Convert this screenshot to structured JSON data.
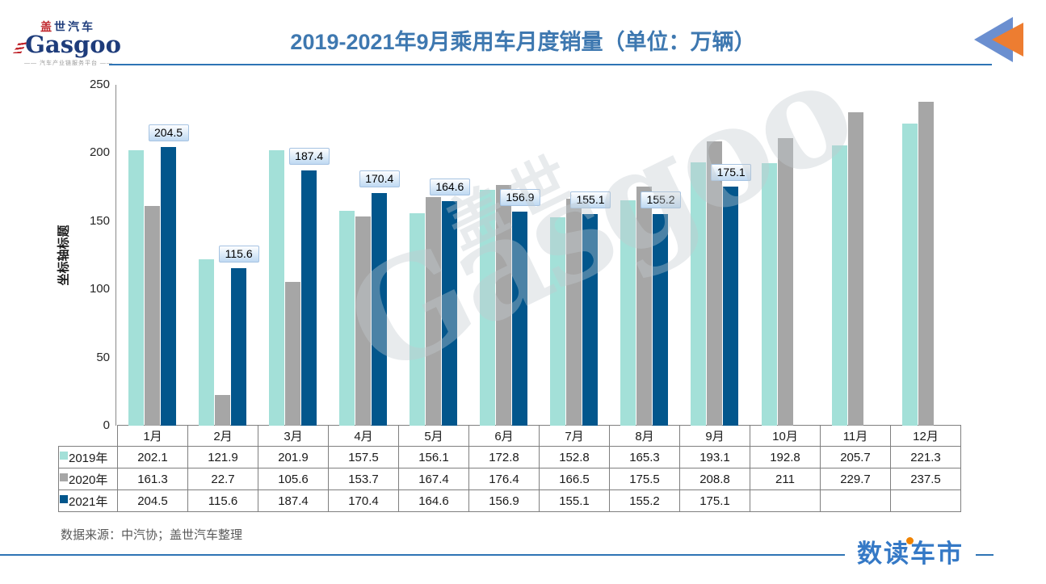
{
  "header": {
    "logo": {
      "cn_first": "盖",
      "cn_rest": "世汽车",
      "en": "Gasgoo",
      "tagline": "—— 汽车产业链服务平台 ——"
    },
    "title": "2019-2021年9月乘用车月度销量（单位：万辆）",
    "title_color": "#3e78b0"
  },
  "chart_data": {
    "type": "bar",
    "title": "2019-2021年9月乘用车月度销量（单位：万辆）",
    "unit": "万辆",
    "categories": [
      "1月",
      "2月",
      "3月",
      "4月",
      "5月",
      "6月",
      "7月",
      "8月",
      "9月",
      "10月",
      "11月",
      "12月"
    ],
    "series": [
      {
        "name": "2019年",
        "color": "#a3e0d8",
        "values": [
          202.1,
          121.9,
          201.9,
          157.5,
          156.1,
          172.8,
          152.8,
          165.3,
          193.1,
          192.8,
          205.7,
          221.3
        ],
        "show_data_labels": false
      },
      {
        "name": "2020年",
        "color": "#a6a6a6",
        "values": [
          161.3,
          22.7,
          105.6,
          153.7,
          167.4,
          176.4,
          166.5,
          175.5,
          208.8,
          211,
          229.7,
          237.5
        ],
        "show_data_labels": false
      },
      {
        "name": "2021年",
        "color": "#02568c",
        "values": [
          204.5,
          115.6,
          187.4,
          170.4,
          164.6,
          156.9,
          155.1,
          155.2,
          175.1,
          null,
          null,
          null
        ],
        "show_data_labels": true
      }
    ],
    "ylabel": "坐标轴标题",
    "yticks": [
      0,
      50,
      100,
      150,
      200,
      250
    ],
    "ylim": [
      0,
      250
    ],
    "grid": false,
    "legend_position": "table-rows-left",
    "data_label_style": {
      "background": "#bfd9f2",
      "border": "#a6c3e2"
    }
  },
  "watermark": {
    "en": "Gasgoo",
    "cn": "盖世"
  },
  "footer": {
    "source": "数据来源：中汽协；盖世汽车整理",
    "brand": "数读车市",
    "brand_color": "#3579c6",
    "accent_color": "#f08300",
    "rule_color": "#2e74b5"
  }
}
